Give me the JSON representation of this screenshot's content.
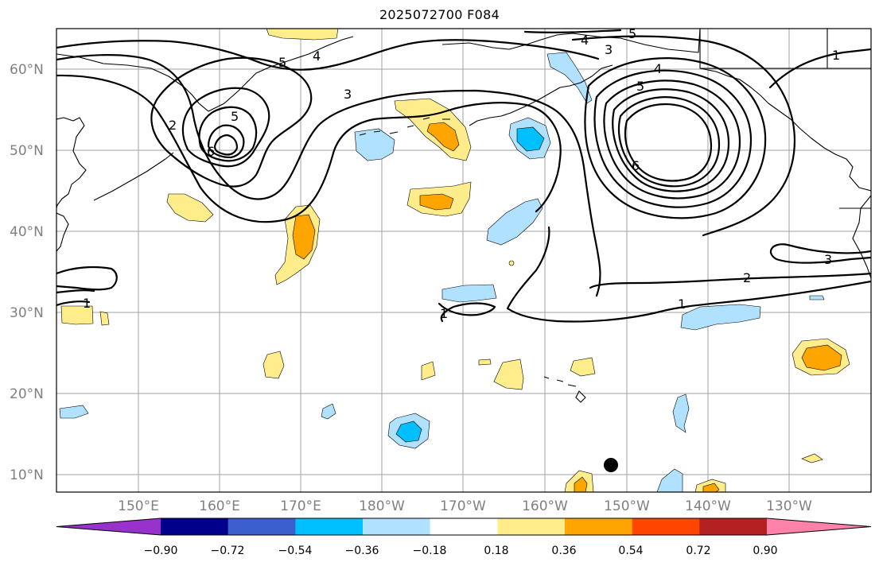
{
  "title": "2025072700 F084",
  "map": {
    "lat_labels": [
      "60°N",
      "50°N",
      "40°N",
      "30°N",
      "20°N",
      "10°N"
    ],
    "lon_labels": [
      "150°E",
      "160°E",
      "170°E",
      "180°W",
      "170°W",
      "160°W",
      "150°W",
      "140°W",
      "130°W"
    ]
  },
  "contour_labels": [
    "1",
    "1",
    "1",
    "1",
    "2",
    "2",
    "3",
    "3",
    "3",
    "4",
    "4",
    "4",
    "5",
    "5",
    "5",
    "5",
    "6",
    "6"
  ],
  "colorbar": {
    "tick_labels": [
      "−0.90",
      "−0.72",
      "−0.54",
      "−0.36",
      "−0.18",
      "0.18",
      "0.36",
      "0.54",
      "0.72",
      "0.90"
    ],
    "colors": [
      "#9932cc",
      "#00008b",
      "#3a5fcd",
      "#00bfff",
      "#b0e2ff",
      "#ffffff",
      "#ffec8b",
      "#ffa500",
      "#ff4500",
      "#b22222",
      "#ff82ab"
    ]
  }
}
